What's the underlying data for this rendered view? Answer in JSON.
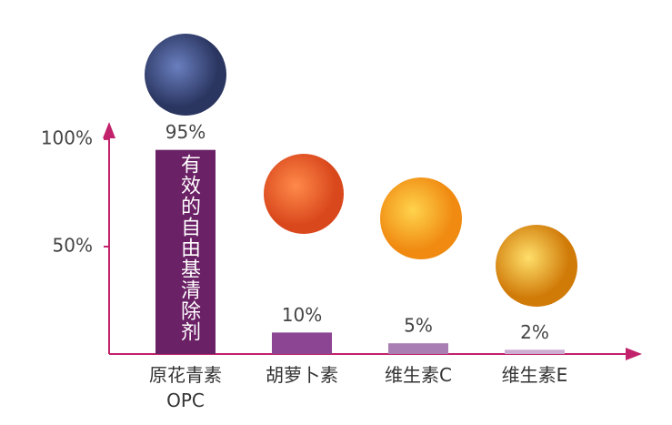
{
  "chart_data": {
    "type": "bar",
    "categories": [
      "原花青素 OPC",
      "胡萝卜素",
      "维生素C",
      "维生素E"
    ],
    "values": [
      95,
      10,
      5,
      2
    ],
    "value_labels": [
      "95%",
      "10%",
      "5%",
      "2%"
    ],
    "colors": [
      "#6b2166",
      "#8b4593",
      "#a97fb3",
      "#cdaed3"
    ],
    "annotation": "有效的自由基清除剂",
    "ylim": [
      0,
      108
    ],
    "yticks": [
      {
        "value": 50,
        "label": "50%"
      },
      {
        "value": 100,
        "label": "100%"
      }
    ]
  }
}
